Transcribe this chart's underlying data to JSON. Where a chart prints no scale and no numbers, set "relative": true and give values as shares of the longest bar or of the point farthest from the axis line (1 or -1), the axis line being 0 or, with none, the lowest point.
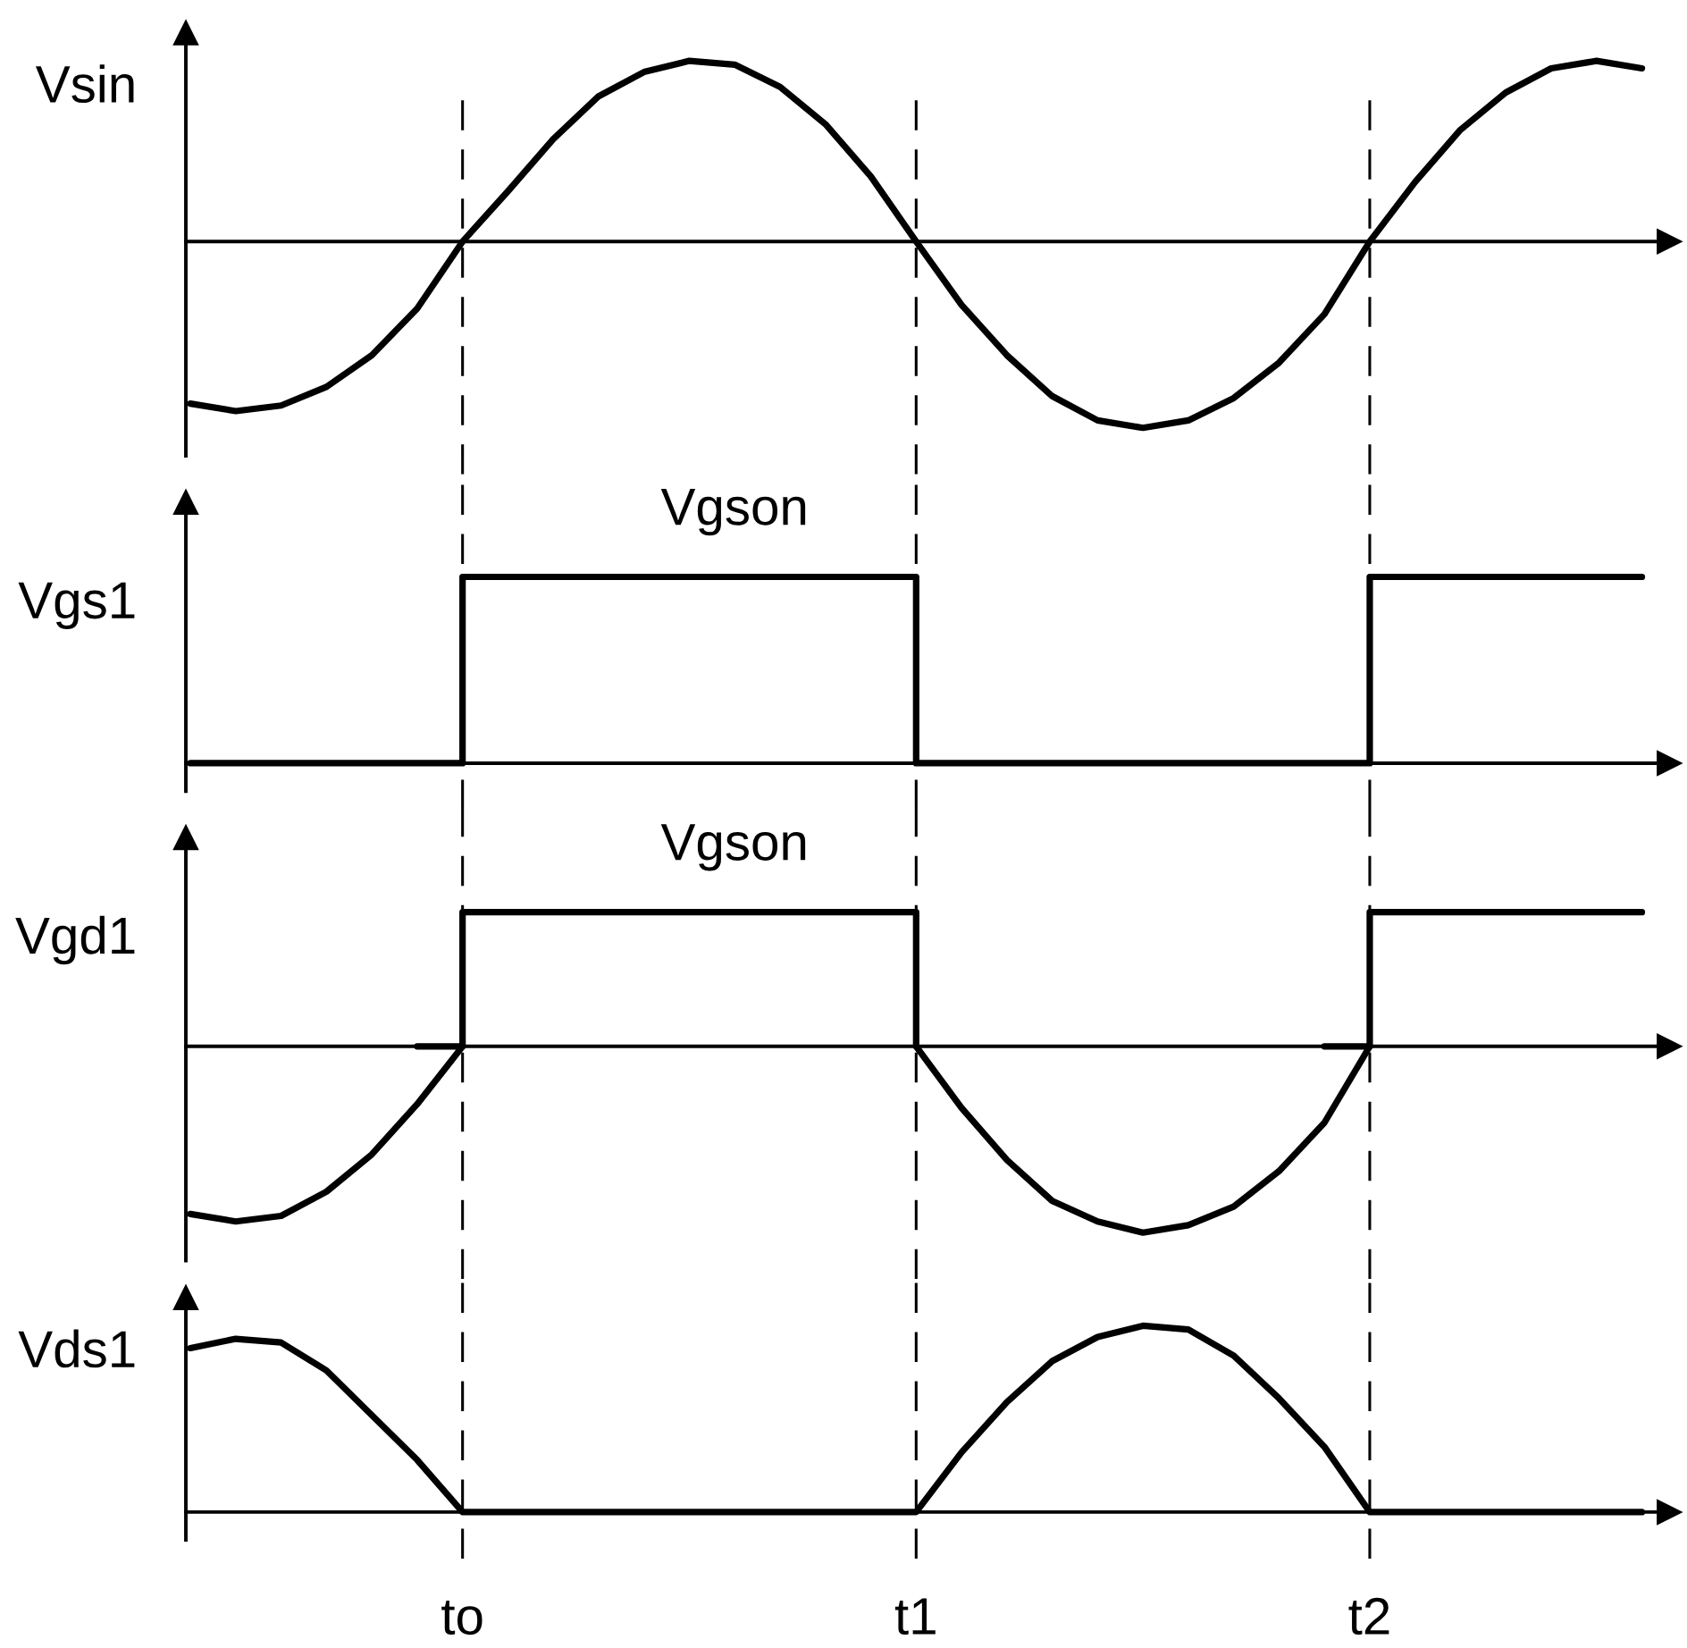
{
  "chart_data": [
    {
      "type": "line",
      "ylabel": "Vsin",
      "relative": true,
      "tick_labels": false,
      "categories": [
        null,
        null,
        null,
        null,
        null,
        null,
        "to",
        null,
        null,
        null,
        null,
        null,
        null,
        null,
        null,
        null,
        "t1",
        null,
        null,
        null,
        null,
        null,
        null,
        null,
        null,
        null,
        "t2",
        null,
        null,
        null,
        null,
        null,
        null
      ],
      "series": [
        {
          "color": "#000000",
          "values": [
            -0.87,
            -0.91,
            -0.88,
            -0.78,
            -0.61,
            -0.36,
            0,
            0.27,
            0.55,
            0.78,
            0.91,
            0.97,
            0.95,
            0.83,
            0.63,
            0.35,
            0,
            -0.34,
            -0.61,
            -0.83,
            -0.96,
            -1.0,
            -0.96,
            -0.84,
            -0.65,
            -0.39,
            0,
            0.32,
            0.6,
            0.8,
            0.93,
            0.97,
            0.93
          ]
        }
      ],
      "ref_lines": [
        {
          "axis": "x",
          "value": "to",
          "color": "#000000",
          "line_style": "dashed"
        },
        {
          "axis": "x",
          "value": "t1",
          "color": "#000000",
          "line_style": "dashed"
        },
        {
          "axis": "x",
          "value": "t2",
          "color": "#000000",
          "line_style": "dashed"
        }
      ]
    },
    {
      "type": "step",
      "ylabel": "Vgs1",
      "relative": true,
      "tick_labels": false,
      "categories": [
        null,
        null,
        null,
        null,
        null,
        null,
        "to",
        null,
        null,
        null,
        null,
        null,
        null,
        null,
        null,
        null,
        "t1",
        null,
        null,
        null,
        null,
        null,
        null,
        null,
        null,
        null,
        "t2",
        null,
        null,
        null,
        null,
        null,
        null
      ],
      "annotations": [
        {
          "text": "Vgson",
          "y": 1
        }
      ],
      "series": [
        {
          "color": "#000000",
          "values": [
            0,
            0,
            0,
            0,
            0,
            0,
            1,
            1,
            1,
            1,
            1,
            1,
            1,
            1,
            1,
            1,
            0,
            0,
            0,
            0,
            0,
            0,
            0,
            0,
            0,
            0,
            1,
            1,
            1,
            1,
            1,
            1,
            1
          ]
        }
      ],
      "ref_lines": [
        {
          "axis": "x",
          "value": "to",
          "color": "#000000",
          "line_style": "dashed"
        },
        {
          "axis": "x",
          "value": "t1",
          "color": "#000000",
          "line_style": "dashed"
        },
        {
          "axis": "x",
          "value": "t2",
          "color": "#000000",
          "line_style": "dashed"
        }
      ]
    },
    {
      "type": "line",
      "ylabel": "Vgd1",
      "relative": true,
      "tick_labels": false,
      "categories": [
        null,
        null,
        null,
        null,
        null,
        null,
        "to",
        null,
        null,
        null,
        null,
        null,
        null,
        null,
        null,
        null,
        "t1",
        null,
        null,
        null,
        null,
        null,
        null,
        null,
        null,
        null,
        "t2",
        null,
        null,
        null,
        null,
        null,
        null
      ],
      "annotations": [
        {
          "text": "Vgson",
          "y": 0.72
        }
      ],
      "series": [
        {
          "color": "#000000",
          "values": [
            -0.9,
            -0.94,
            -0.91,
            -0.78,
            -0.58,
            -0.31,
            0,
            null,
            null,
            null,
            null,
            null,
            null,
            null,
            null,
            null,
            0,
            -0.33,
            -0.61,
            -0.83,
            -0.94,
            -1.0,
            -0.96,
            -0.86,
            -0.67,
            -0.41,
            0,
            null,
            null,
            null,
            null,
            null,
            null
          ]
        },
        {
          "type": "step",
          "color": "#000000",
          "values": [
            null,
            null,
            null,
            null,
            null,
            0,
            0.72,
            0.72,
            0.72,
            0.72,
            0.72,
            0.72,
            0.72,
            0.72,
            0.72,
            0.72,
            0,
            null,
            null,
            null,
            null,
            null,
            null,
            null,
            null,
            0,
            0.72,
            0.72,
            0.72,
            0.72,
            0.72,
            0.72,
            0.72
          ]
        }
      ],
      "ref_lines": [
        {
          "axis": "x",
          "value": "to",
          "color": "#000000",
          "line_style": "dashed"
        },
        {
          "axis": "x",
          "value": "t1",
          "color": "#000000",
          "line_style": "dashed"
        },
        {
          "axis": "x",
          "value": "t2",
          "color": "#000000",
          "line_style": "dashed"
        }
      ]
    },
    {
      "type": "line",
      "ylabel": "Vds1",
      "relative": true,
      "tick_labels": "x",
      "categories": [
        null,
        null,
        null,
        null,
        null,
        null,
        "to",
        null,
        null,
        null,
        null,
        null,
        null,
        null,
        null,
        null,
        "t1",
        null,
        null,
        null,
        null,
        null,
        null,
        null,
        null,
        null,
        "t2",
        null,
        null,
        null,
        null,
        null,
        null
      ],
      "series": [
        {
          "color": "#000000",
          "values": [
            0.88,
            0.93,
            0.91,
            0.76,
            0.52,
            0.28,
            0,
            0,
            0,
            0,
            0,
            0,
            0,
            0,
            0,
            0,
            0,
            0.32,
            0.59,
            0.81,
            0.94,
            1.0,
            0.98,
            0.84,
            0.61,
            0.35,
            0,
            0,
            0,
            0,
            0,
            0,
            0
          ]
        }
      ],
      "ref_lines": [
        {
          "axis": "x",
          "value": "to",
          "color": "#000000",
          "line_style": "dashed"
        },
        {
          "axis": "x",
          "value": "t1",
          "color": "#000000",
          "line_style": "dashed"
        },
        {
          "axis": "x",
          "value": "t2",
          "color": "#000000",
          "line_style": "dashed"
        }
      ]
    }
  ]
}
